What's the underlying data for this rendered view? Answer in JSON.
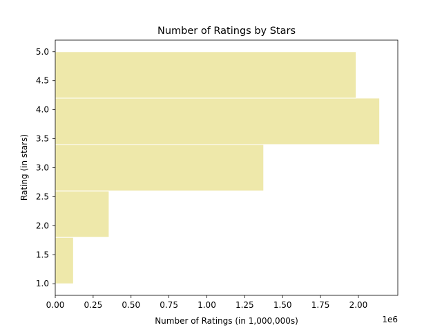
{
  "chart_data": {
    "type": "bar",
    "orientation": "horizontal",
    "title": "Number of Ratings by Stars",
    "xlabel": "Number of Ratings (in 1,000,000s)",
    "ylabel": "Rating (in stars)",
    "x_offset_label": "1e6",
    "bar_color": "#eee8aa",
    "bar_edge_color": "#ffffff",
    "grid": false,
    "xlim": [
      0,
      2260000
    ],
    "ylim": [
      0.8,
      5.2
    ],
    "x_ticks": [
      0,
      250000,
      500000,
      750000,
      1000000,
      1250000,
      1500000,
      1750000,
      2000000
    ],
    "x_tick_labels": [
      "0.00",
      "0.25",
      "0.50",
      "0.75",
      "1.00",
      "1.25",
      "1.50",
      "1.75",
      "2.00"
    ],
    "y_ticks": [
      1.0,
      1.5,
      2.0,
      2.5,
      3.0,
      3.5,
      4.0,
      4.5,
      5.0
    ],
    "y_tick_labels": [
      "1.0",
      "1.5",
      "2.0",
      "2.5",
      "3.0",
      "3.5",
      "4.0",
      "4.5",
      "5.0"
    ],
    "bins": [
      {
        "start": 1.0,
        "end": 1.8,
        "value": 120000
      },
      {
        "start": 1.8,
        "end": 2.6,
        "value": 355000
      },
      {
        "start": 2.6,
        "end": 3.4,
        "value": 1375000
      },
      {
        "start": 3.4,
        "end": 4.2,
        "value": 2140000
      },
      {
        "start": 4.2,
        "end": 5.0,
        "value": 1985000
      }
    ]
  }
}
